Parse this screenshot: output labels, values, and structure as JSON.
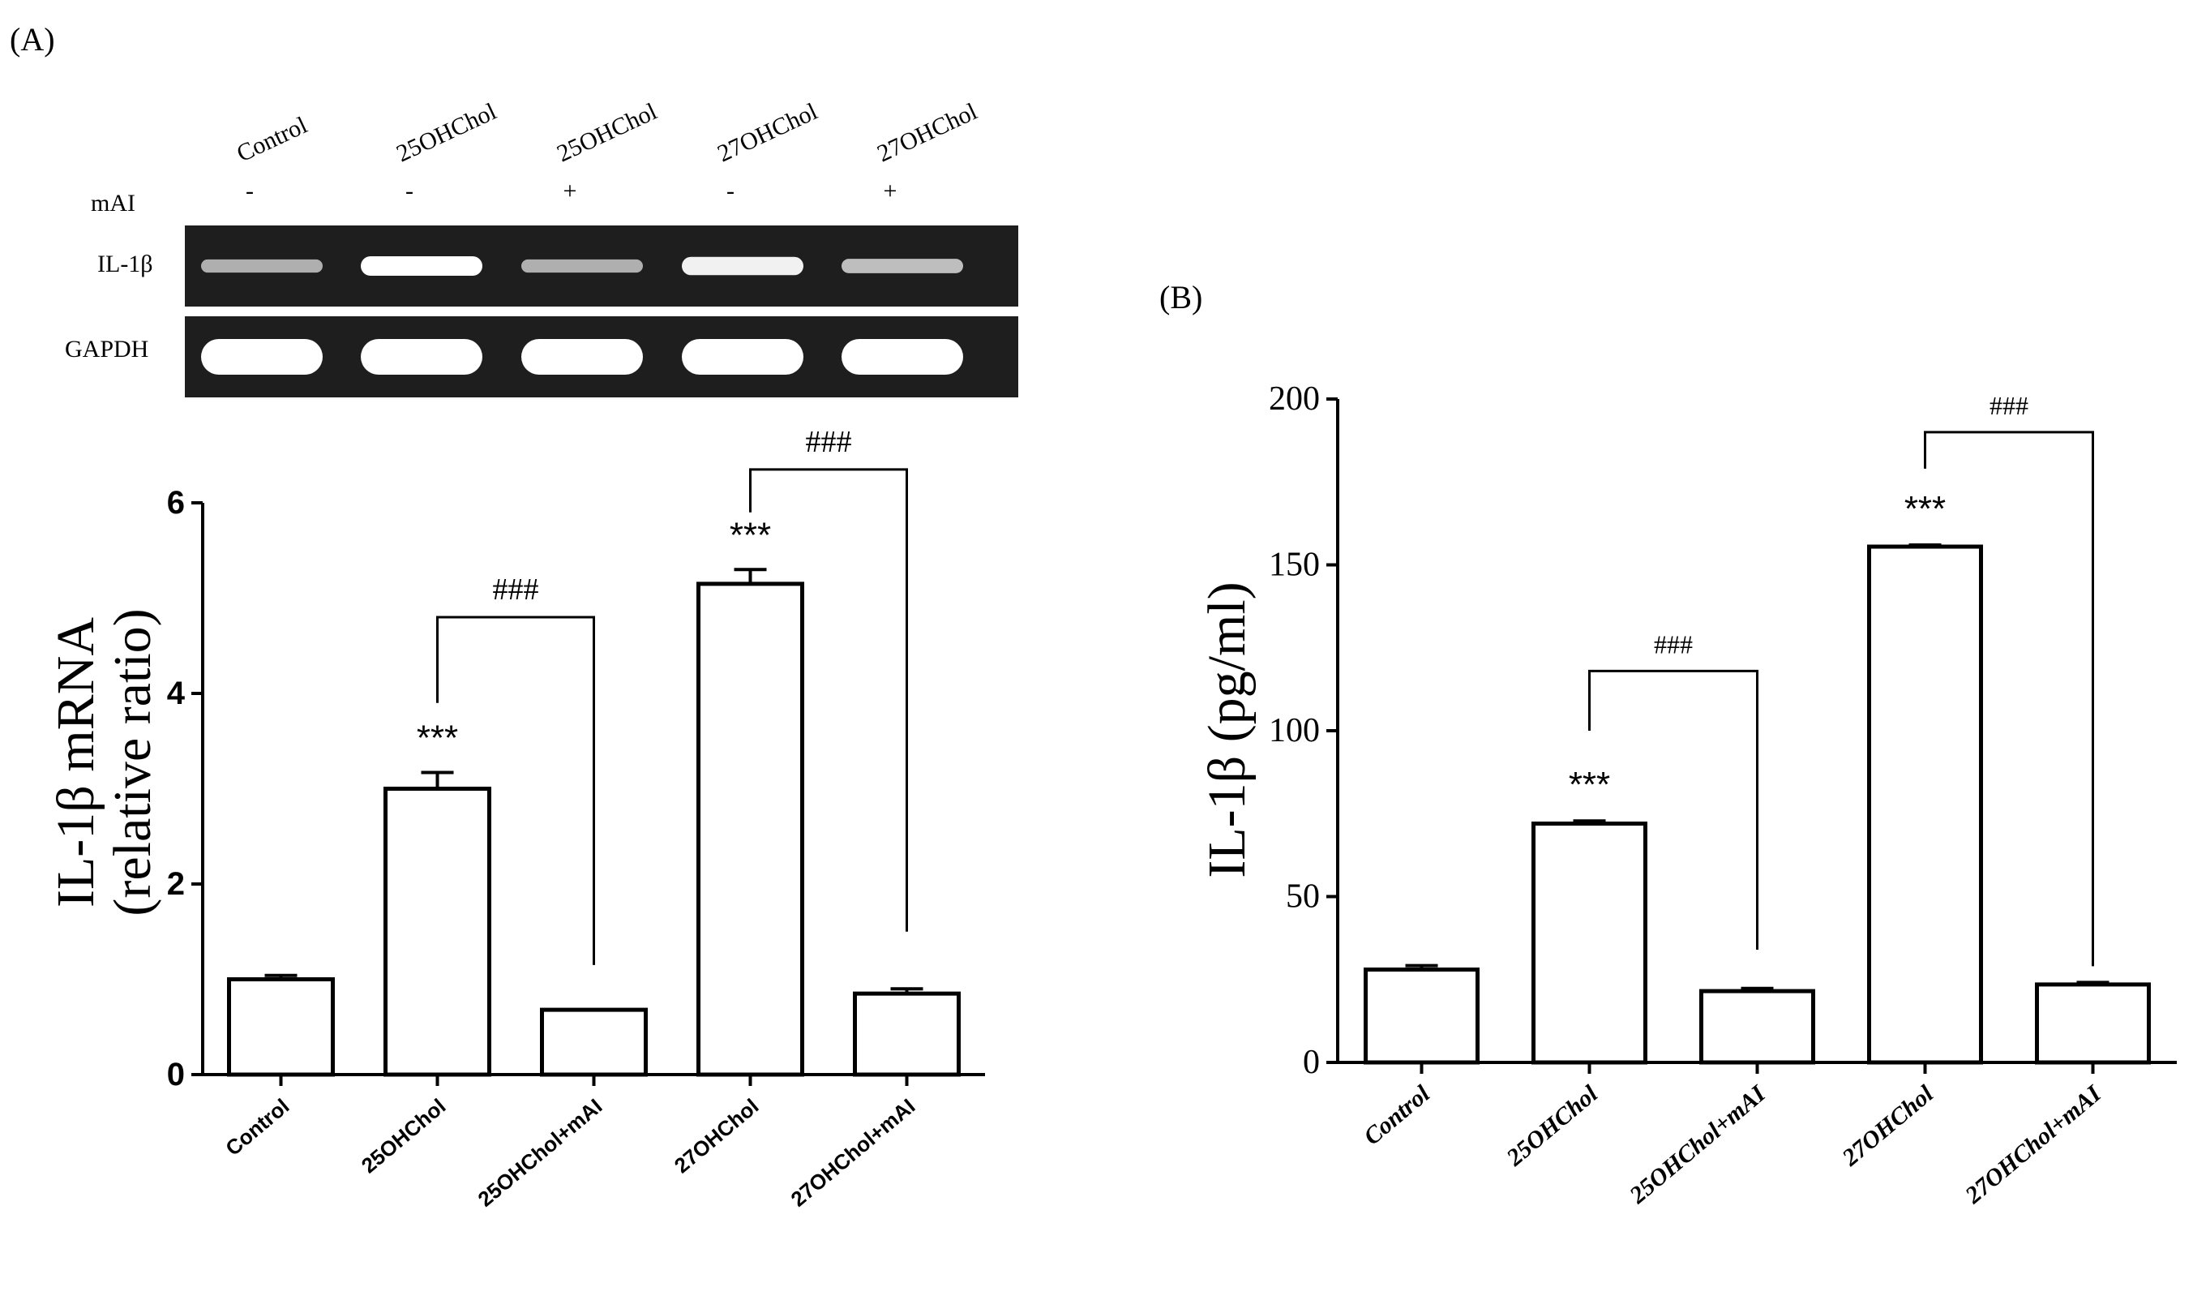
{
  "panel_a": {
    "label": "(A)",
    "gel": {
      "lane_headers": [
        "Control",
        "25OHChol",
        "25OHChol",
        "27OHChol",
        "27OHChol"
      ],
      "treatment_label": "mAI",
      "treatment_marks": [
        "-",
        "-",
        "+",
        "-",
        "+"
      ],
      "rows": [
        {
          "label": "IL-1β",
          "band_intensity": [
            0.45,
            1.0,
            0.45,
            0.9,
            0.55
          ]
        },
        {
          "label": "GAPDH",
          "band_intensity": [
            1.0,
            1.0,
            1.0,
            1.0,
            1.0
          ]
        }
      ]
    }
  },
  "panel_b": {
    "label": "(B)"
  },
  "chart_data": [
    {
      "type": "bar",
      "panel": "A",
      "categories": [
        "Control",
        "25OHChol",
        "25OHChol+mAI",
        "27OHChol",
        "27OHChol+mAI"
      ],
      "values": [
        1.0,
        3.0,
        0.68,
        5.15,
        0.85
      ],
      "errors": [
        0.04,
        0.17,
        0.0,
        0.15,
        0.05
      ],
      "ylabel_line1": "IL-1β mRNA",
      "ylabel_line2": "(relative ratio)",
      "ylim": [
        0,
        6
      ],
      "yticks": [
        0,
        2,
        4,
        6
      ],
      "yticklabels": [
        "0",
        "2",
        "4",
        "6"
      ],
      "significance": [
        {
          "bar": 1,
          "text": "***"
        },
        {
          "bar": 3,
          "text": "***"
        }
      ],
      "brackets": [
        {
          "from": 1,
          "to": 2,
          "text": "###",
          "height": 4.8,
          "from_end": 3.9,
          "to_end": 1.15
        },
        {
          "from": 3,
          "to": 4,
          "text": "###",
          "height": 6.35,
          "from_end": 5.9,
          "to_end": 1.5
        }
      ]
    },
    {
      "type": "bar",
      "panel": "B",
      "categories": [
        "Control",
        "25OHChol",
        "25OHChol+mAI",
        "27OHChol",
        "27OHChol+mAI"
      ],
      "values": [
        28,
        72,
        21.5,
        155.5,
        23.5
      ],
      "errors": [
        1.2,
        0.8,
        0.8,
        0.5,
        0.6
      ],
      "ylabel": "IL-1β (pg/ml)",
      "ylim": [
        0,
        200
      ],
      "yticks": [
        0,
        50,
        100,
        150,
        200
      ],
      "yticklabels": [
        "0",
        "50",
        "100",
        "150",
        "200"
      ],
      "significance": [
        {
          "bar": 1,
          "text": "***"
        },
        {
          "bar": 3,
          "text": "***"
        }
      ],
      "brackets": [
        {
          "from": 1,
          "to": 2,
          "text": "###",
          "height": 118,
          "from_end": 100,
          "to_end": 34
        },
        {
          "from": 3,
          "to": 4,
          "text": "###",
          "height": 190,
          "from_end": 179,
          "to_end": 29
        }
      ]
    }
  ]
}
